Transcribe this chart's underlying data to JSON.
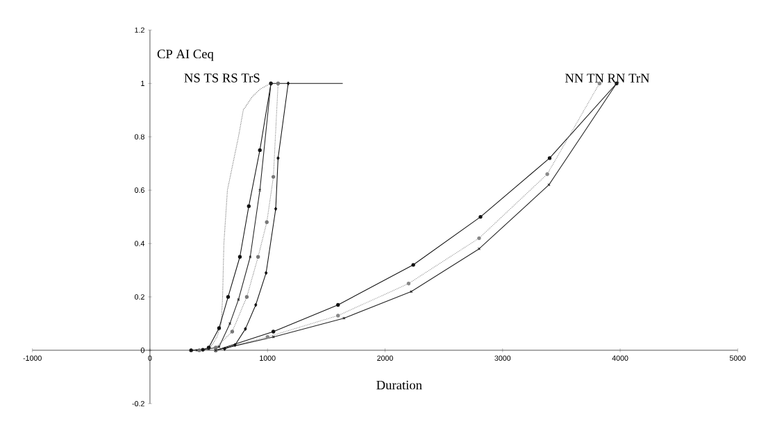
{
  "chart_data": {
    "type": "line",
    "xlabel": "Duration",
    "xlim": [
      -1000,
      5000
    ],
    "ylim": [
      -0.2,
      1.2
    ],
    "xticks": [
      -1000,
      0,
      1000,
      2000,
      3000,
      4000,
      5000
    ],
    "yticks": [
      -0.2,
      0,
      0.2,
      0.4,
      0.6,
      0.8,
      1,
      1.2
    ],
    "grid": false,
    "series": [
      {
        "color": "#666666",
        "marker": "none",
        "line_style": "dotted",
        "x": [
          500,
          570,
          606,
          618,
          629,
          659,
          706,
          753,
          794,
          870,
          941,
          1029
        ],
        "values": [
          0,
          0.05,
          0.1,
          0.2,
          0.4,
          0.6,
          0.7,
          0.8,
          0.9,
          0.95,
          0.98,
          1
        ]
      },
      {
        "color": "#111111",
        "marker": "circle",
        "line_style": "solid",
        "x": [
          350,
          450,
          500,
          588,
          665,
          765,
          841,
          935,
          1029
        ],
        "values": [
          0,
          0.002,
          0.01,
          0.083,
          0.2,
          0.35,
          0.54,
          0.75,
          1
        ]
      },
      {
        "color": "#222222",
        "marker": "cross",
        "line_style": "solid",
        "x": [
          400,
          500,
          588,
          680,
          753,
          853,
          935,
          1029
        ],
        "values": [
          0,
          0.005,
          0.013,
          0.1,
          0.19,
          0.35,
          0.6,
          1
        ]
      },
      {
        "color": "#777777",
        "marker": "circle",
        "line_style": "dotted",
        "x": [
          420,
          560,
          700,
          824,
          920,
          994,
          1050,
          1090
        ],
        "values": [
          0,
          0.01,
          0.07,
          0.2,
          0.35,
          0.48,
          0.65,
          1
        ]
      },
      {
        "color": "#111111",
        "marker": "diamond",
        "line_style": "solid",
        "x": [
          635,
          724,
          812,
          900,
          988,
          1070,
          1090,
          1176
        ],
        "values": [
          0.005,
          0.02,
          0.08,
          0.17,
          0.29,
          0.53,
          0.72,
          1
        ]
      },
      {
        "color": "#111111",
        "marker": "none",
        "line_style": "solid",
        "x": [
          1029,
          1640
        ],
        "values": [
          1,
          1
        ]
      },
      {
        "color": "#111111",
        "marker": "circle",
        "line_style": "solid",
        "x": [
          560,
          1050,
          1600,
          2240,
          2812,
          3400,
          3970
        ],
        "values": [
          0,
          0.07,
          0.17,
          0.32,
          0.5,
          0.72,
          1
        ]
      },
      {
        "color": "#888888",
        "marker": "circle",
        "line_style": "dotted",
        "x": [
          560,
          1000,
          1600,
          2200,
          2800,
          3380,
          3824
        ],
        "values": [
          0,
          0.05,
          0.13,
          0.25,
          0.42,
          0.66,
          1
        ]
      },
      {
        "color": "#222222",
        "marker": "cross",
        "line_style": "solid",
        "x": [
          560,
          1050,
          1650,
          2223,
          2800,
          3394,
          3970
        ],
        "values": [
          0,
          0.05,
          0.12,
          0.22,
          0.38,
          0.62,
          1
        ]
      }
    ],
    "annotations": [
      "CP AI Ceq",
      "NS  TS  RS  TrS",
      "NN  TN  RN  TrN"
    ]
  }
}
